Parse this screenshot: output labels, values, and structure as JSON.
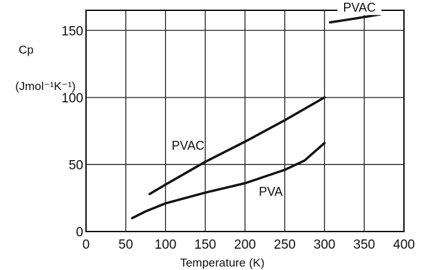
{
  "chart_data": {
    "type": "line",
    "title": "",
    "xlabel": "Temperature (K)",
    "ylabel_symbol": "Cp",
    "ylabel_units": "(Jmol⁻¹K⁻¹)",
    "xlim": [
      0,
      400
    ],
    "ylim": [
      0,
      165
    ],
    "grid": true,
    "xticks": [
      0,
      50,
      100,
      150,
      200,
      250,
      300,
      350,
      400
    ],
    "yticks": [
      0,
      50,
      100,
      150
    ],
    "series": [
      {
        "name": "PVAC",
        "x": [
          80,
          100,
          150,
          200,
          250,
          300
        ],
        "y": [
          28,
          35,
          52,
          67,
          83,
          100
        ]
      },
      {
        "name": "PVAC",
        "x": [
          307,
          340,
          370
        ],
        "y": [
          156,
          159,
          162
        ]
      },
      {
        "name": "PVA",
        "x": [
          58,
          75,
          100,
          150,
          200,
          250,
          275,
          300
        ],
        "y": [
          10,
          15,
          21,
          29,
          36,
          46,
          53,
          66
        ]
      }
    ]
  }
}
